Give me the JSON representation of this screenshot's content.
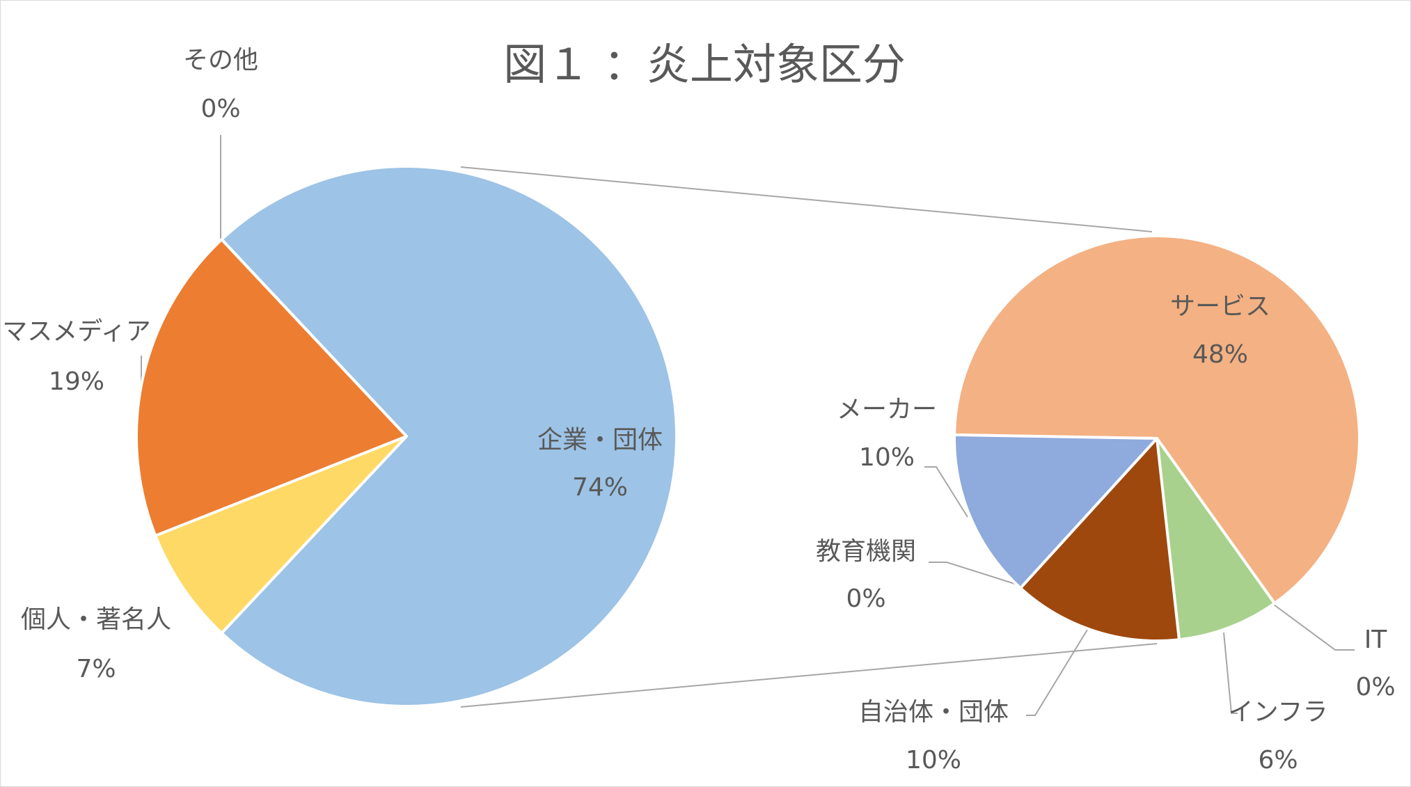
{
  "chart_data": [
    {
      "type": "pie",
      "title": "図１ ：炎上対象区分",
      "categories": [
        "企業・団体",
        "個人・著名人",
        "マスメディア",
        "その他"
      ],
      "values": [
        74,
        7,
        19,
        0
      ],
      "value_labels": [
        "74%",
        "7%",
        "19%",
        "0%"
      ],
      "colors": [
        "#9dc3e6",
        "#ffd966",
        "#ed7d31",
        "#a5a5a5"
      ]
    },
    {
      "type": "pie",
      "categories": [
        "サービス",
        "IT",
        "インフラ",
        "自治体・団体",
        "教育機関",
        "メーカー"
      ],
      "values": [
        48,
        0,
        6,
        10,
        0,
        10
      ],
      "value_labels": [
        "48%",
        "0%",
        "6%",
        "10%",
        "0%",
        "10%"
      ],
      "colors": [
        "#f4b183",
        "#7f7f7f",
        "#a9d18e",
        "#9e480e",
        "#c9c9c9",
        "#8faadc"
      ]
    }
  ]
}
